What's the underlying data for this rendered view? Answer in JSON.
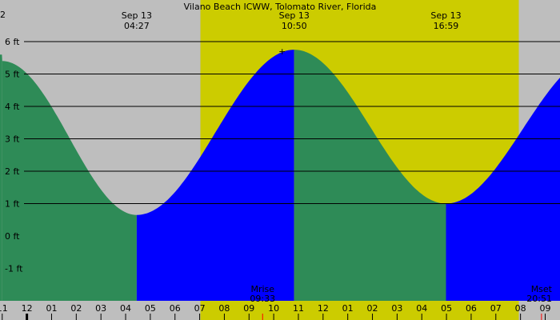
{
  "colors": {
    "night": "#bebebe",
    "day": "#cccc00",
    "rising": "#0000ff",
    "falling": "#2e8b57",
    "grid": "#000000",
    "moon_tick": "#ff0000"
  },
  "chart_data": {
    "type": "area",
    "title": "Vilano Beach ICWW, Tolomato River, Florida",
    "xlabel": "",
    "ylabel": "",
    "x_unit": "hour (Sep 13)",
    "xlim": [
      -1.09,
      21.6
    ],
    "ylim": [
      -2.0,
      6.25
    ],
    "grid": true,
    "y_ticks": [
      {
        "value": -1,
        "label": "-1 ft"
      },
      {
        "value": 0,
        "label": "0 ft"
      },
      {
        "value": 1,
        "label": "1 ft"
      },
      {
        "value": 2,
        "label": "2 ft"
      },
      {
        "value": 3,
        "label": "3 ft"
      },
      {
        "value": 4,
        "label": "4 ft"
      },
      {
        "value": 5,
        "label": "5 ft"
      },
      {
        "value": 6,
        "label": "6 ft"
      }
    ],
    "x_ticks": [
      {
        "value": -1,
        "label": "11"
      },
      {
        "value": 0,
        "label": "12"
      },
      {
        "value": 1,
        "label": "01"
      },
      {
        "value": 2,
        "label": "02"
      },
      {
        "value": 3,
        "label": "03"
      },
      {
        "value": 4,
        "label": "04"
      },
      {
        "value": 5,
        "label": "05"
      },
      {
        "value": 6,
        "label": "06"
      },
      {
        "value": 7,
        "label": "07"
      },
      {
        "value": 8,
        "label": "08"
      },
      {
        "value": 9,
        "label": "09"
      },
      {
        "value": 10,
        "label": "10"
      },
      {
        "value": 11,
        "label": "11"
      },
      {
        "value": 12,
        "label": "12"
      },
      {
        "value": 13,
        "label": "01"
      },
      {
        "value": 14,
        "label": "02"
      },
      {
        "value": 15,
        "label": "03"
      },
      {
        "value": 16,
        "label": "04"
      },
      {
        "value": 17,
        "label": "05"
      },
      {
        "value": 18,
        "label": "06"
      },
      {
        "value": 19,
        "label": "07"
      },
      {
        "value": 20,
        "label": "08"
      },
      {
        "value": 21,
        "label": "09"
      }
    ],
    "daylight": [
      7.03,
      19.93
    ],
    "tide_events": [
      {
        "time": -1.0,
        "height": 5.4,
        "type": "high"
      },
      {
        "time": 4.45,
        "height": 0.65,
        "type": "low",
        "date_label": "Sep 13",
        "time_label": "04:27"
      },
      {
        "time": 10.83,
        "height": 5.75,
        "type": "high",
        "date_label": "Sep 13",
        "time_label": "10:50"
      },
      {
        "time": 16.98,
        "height": 1.0,
        "type": "low",
        "date_label": "Sep 13",
        "time_label": "16:59"
      },
      {
        "time": 23.2,
        "height": 5.6,
        "type": "high"
      }
    ],
    "moon_events": [
      {
        "name": "Mrise",
        "time": 9.55,
        "time_label": "09:33"
      },
      {
        "name": "Mset",
        "time": 20.85,
        "time_label": "20:51"
      }
    ],
    "corner_label": "2"
  }
}
